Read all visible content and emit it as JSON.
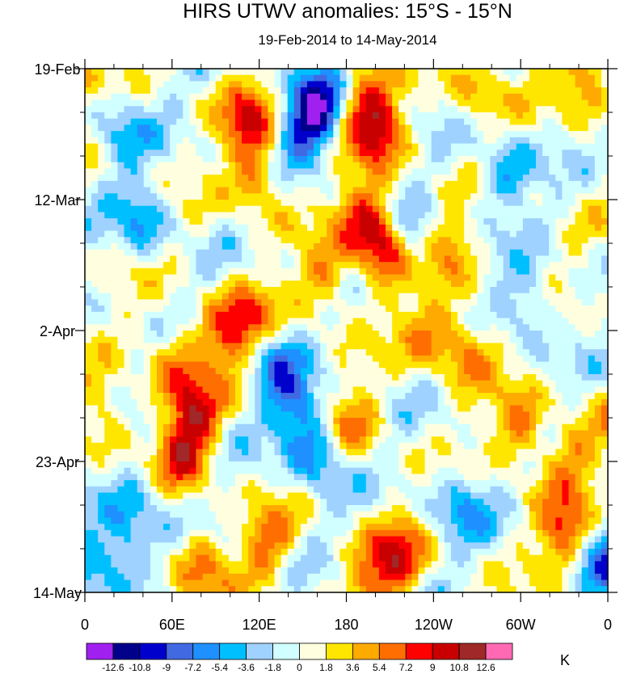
{
  "chart_data": {
    "type": "heatmap",
    "title": "HIRS UTWV anomalies: 15°S - 15°N",
    "subtitle": "19-Feb-2014 to 14-May-2014",
    "x_ticks": [
      "0",
      "60E",
      "120E",
      "180",
      "120W",
      "60W",
      "0"
    ],
    "y_ticks": [
      "19-Feb",
      "12-Mar",
      "2-Apr",
      "23-Apr",
      "14-May"
    ],
    "xlim": [
      0,
      360
    ],
    "time_range": [
      "19-Feb-2014",
      "14-May-2014"
    ],
    "colorbar": {
      "unit": "K",
      "levels": [
        "-12.6",
        "-10.8",
        "-9",
        "-7.2",
        "-5.4",
        "-3.6",
        "-1.8",
        "0",
        "1.8",
        "3.6",
        "5.4",
        "7.2",
        "9",
        "10.8",
        "12.6"
      ],
      "colors": [
        "#a020f0",
        "#00008b",
        "#0000cd",
        "#4169e1",
        "#1e90ff",
        "#00bfff",
        "#a0d2ff",
        "#d1ffff",
        "#ffffe0",
        "#ffe600",
        "#ffaa00",
        "#ff6e00",
        "#ff0000",
        "#c80000",
        "#a02828",
        "#ff69b4"
      ]
    },
    "anomaly_blobs": [
      {
        "lon": 112,
        "day": 8,
        "value": 7.8
      },
      {
        "lon": 118,
        "day": 18,
        "value": 6.0
      },
      {
        "lon": 160,
        "day": 5,
        "value": -8.5
      },
      {
        "lon": 152,
        "day": 10,
        "value": -7.0
      },
      {
        "lon": 203,
        "day": 10,
        "value": 8.5
      },
      {
        "lon": 190,
        "day": 5,
        "value": 5.5
      },
      {
        "lon": 192,
        "day": 24,
        "value": 8.0
      },
      {
        "lon": 208,
        "day": 29,
        "value": 9.5
      },
      {
        "lon": 225,
        "day": 28,
        "value": -6.0
      },
      {
        "lon": 345,
        "day": 2,
        "value": 6.5
      },
      {
        "lon": 165,
        "day": 34,
        "value": 5.5
      },
      {
        "lon": 250,
        "day": 29,
        "value": 5.0
      },
      {
        "lon": 95,
        "day": 43,
        "value": 6.5
      },
      {
        "lon": 115,
        "day": 40,
        "value": 5.5
      },
      {
        "lon": 40,
        "day": 24,
        "value": -5.0
      },
      {
        "lon": 25,
        "day": 10,
        "value": -4.0
      },
      {
        "lon": 75,
        "day": 55,
        "value": 7.5
      },
      {
        "lon": 68,
        "day": 62,
        "value": 7.0
      },
      {
        "lon": 60,
        "day": 47,
        "value": 5.0
      },
      {
        "lon": 145,
        "day": 55,
        "value": -6.5
      },
      {
        "lon": 130,
        "day": 47,
        "value": -5.5
      },
      {
        "lon": 160,
        "day": 62,
        "value": -6.0
      },
      {
        "lon": 235,
        "day": 42,
        "value": 5.5
      },
      {
        "lon": 262,
        "day": 45,
        "value": 6.0
      },
      {
        "lon": 300,
        "day": 58,
        "value": 6.5
      },
      {
        "lon": 335,
        "day": 62,
        "value": 4.5
      },
      {
        "lon": 330,
        "day": 74,
        "value": 7.5
      },
      {
        "lon": 215,
        "day": 78,
        "value": 7.5
      },
      {
        "lon": 195,
        "day": 82,
        "value": 5.5
      },
      {
        "lon": 80,
        "day": 80,
        "value": 6.0
      },
      {
        "lon": 20,
        "day": 78,
        "value": -6.0
      },
      {
        "lon": 35,
        "day": 70,
        "value": -5.0
      },
      {
        "lon": 258,
        "day": 70,
        "value": -5.0
      },
      {
        "lon": 290,
        "day": 17,
        "value": -5.5
      },
      {
        "lon": 125,
        "day": 76,
        "value": 5.5
      },
      {
        "lon": 355,
        "day": 80,
        "value": -5.5
      },
      {
        "lon": 185,
        "day": 57,
        "value": 5.0
      },
      {
        "lon": 15,
        "day": 56,
        "value": 4.5
      },
      {
        "lon": 305,
        "day": 38,
        "value": -4.5
      },
      {
        "lon": 270,
        "day": 3,
        "value": 4.5
      }
    ]
  }
}
